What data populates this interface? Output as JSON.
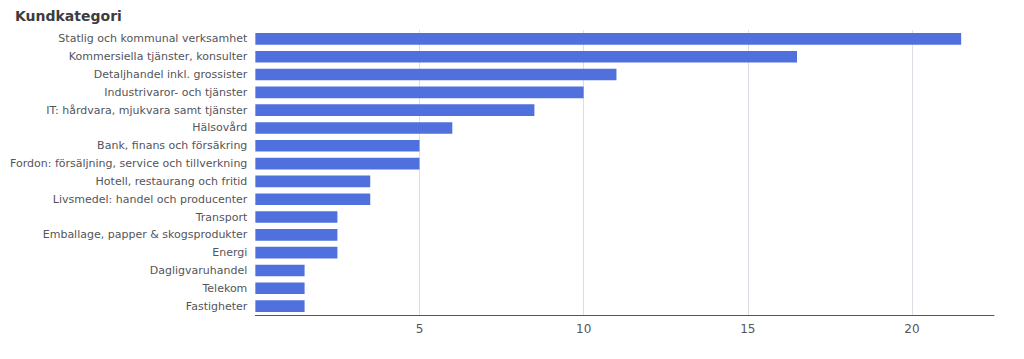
{
  "chart_data": {
    "type": "bar",
    "orientation": "horizontal",
    "title": "Kundkategori",
    "categories": [
      "Statlig och kommunal verksamhet",
      "Kommersiella tjänster, konsulter",
      "Detaljhandel inkl. grossister",
      "Industrivaror- och tjänster",
      "IT: hårdvara, mjukvara samt tjänster",
      "Hälsovård",
      "Bank, finans och försäkring",
      "Fordon: försäljning, service och tillverkning",
      "Hotell, restaurang och fritid",
      "Livsmedel: handel och producenter",
      "Transport",
      "Emballage, papper & skogsprodukter",
      "Energi",
      "Dagligvaruhandel",
      "Telekom",
      "Fastigheter"
    ],
    "values": [
      21.5,
      16.5,
      11.0,
      10.0,
      8.5,
      6.0,
      5.0,
      5.0,
      3.5,
      3.5,
      2.5,
      2.5,
      2.5,
      1.5,
      1.5,
      1.5
    ],
    "xlim": [
      0,
      22.5
    ],
    "xticks": [
      5,
      10,
      15,
      20
    ],
    "grid": true
  }
}
